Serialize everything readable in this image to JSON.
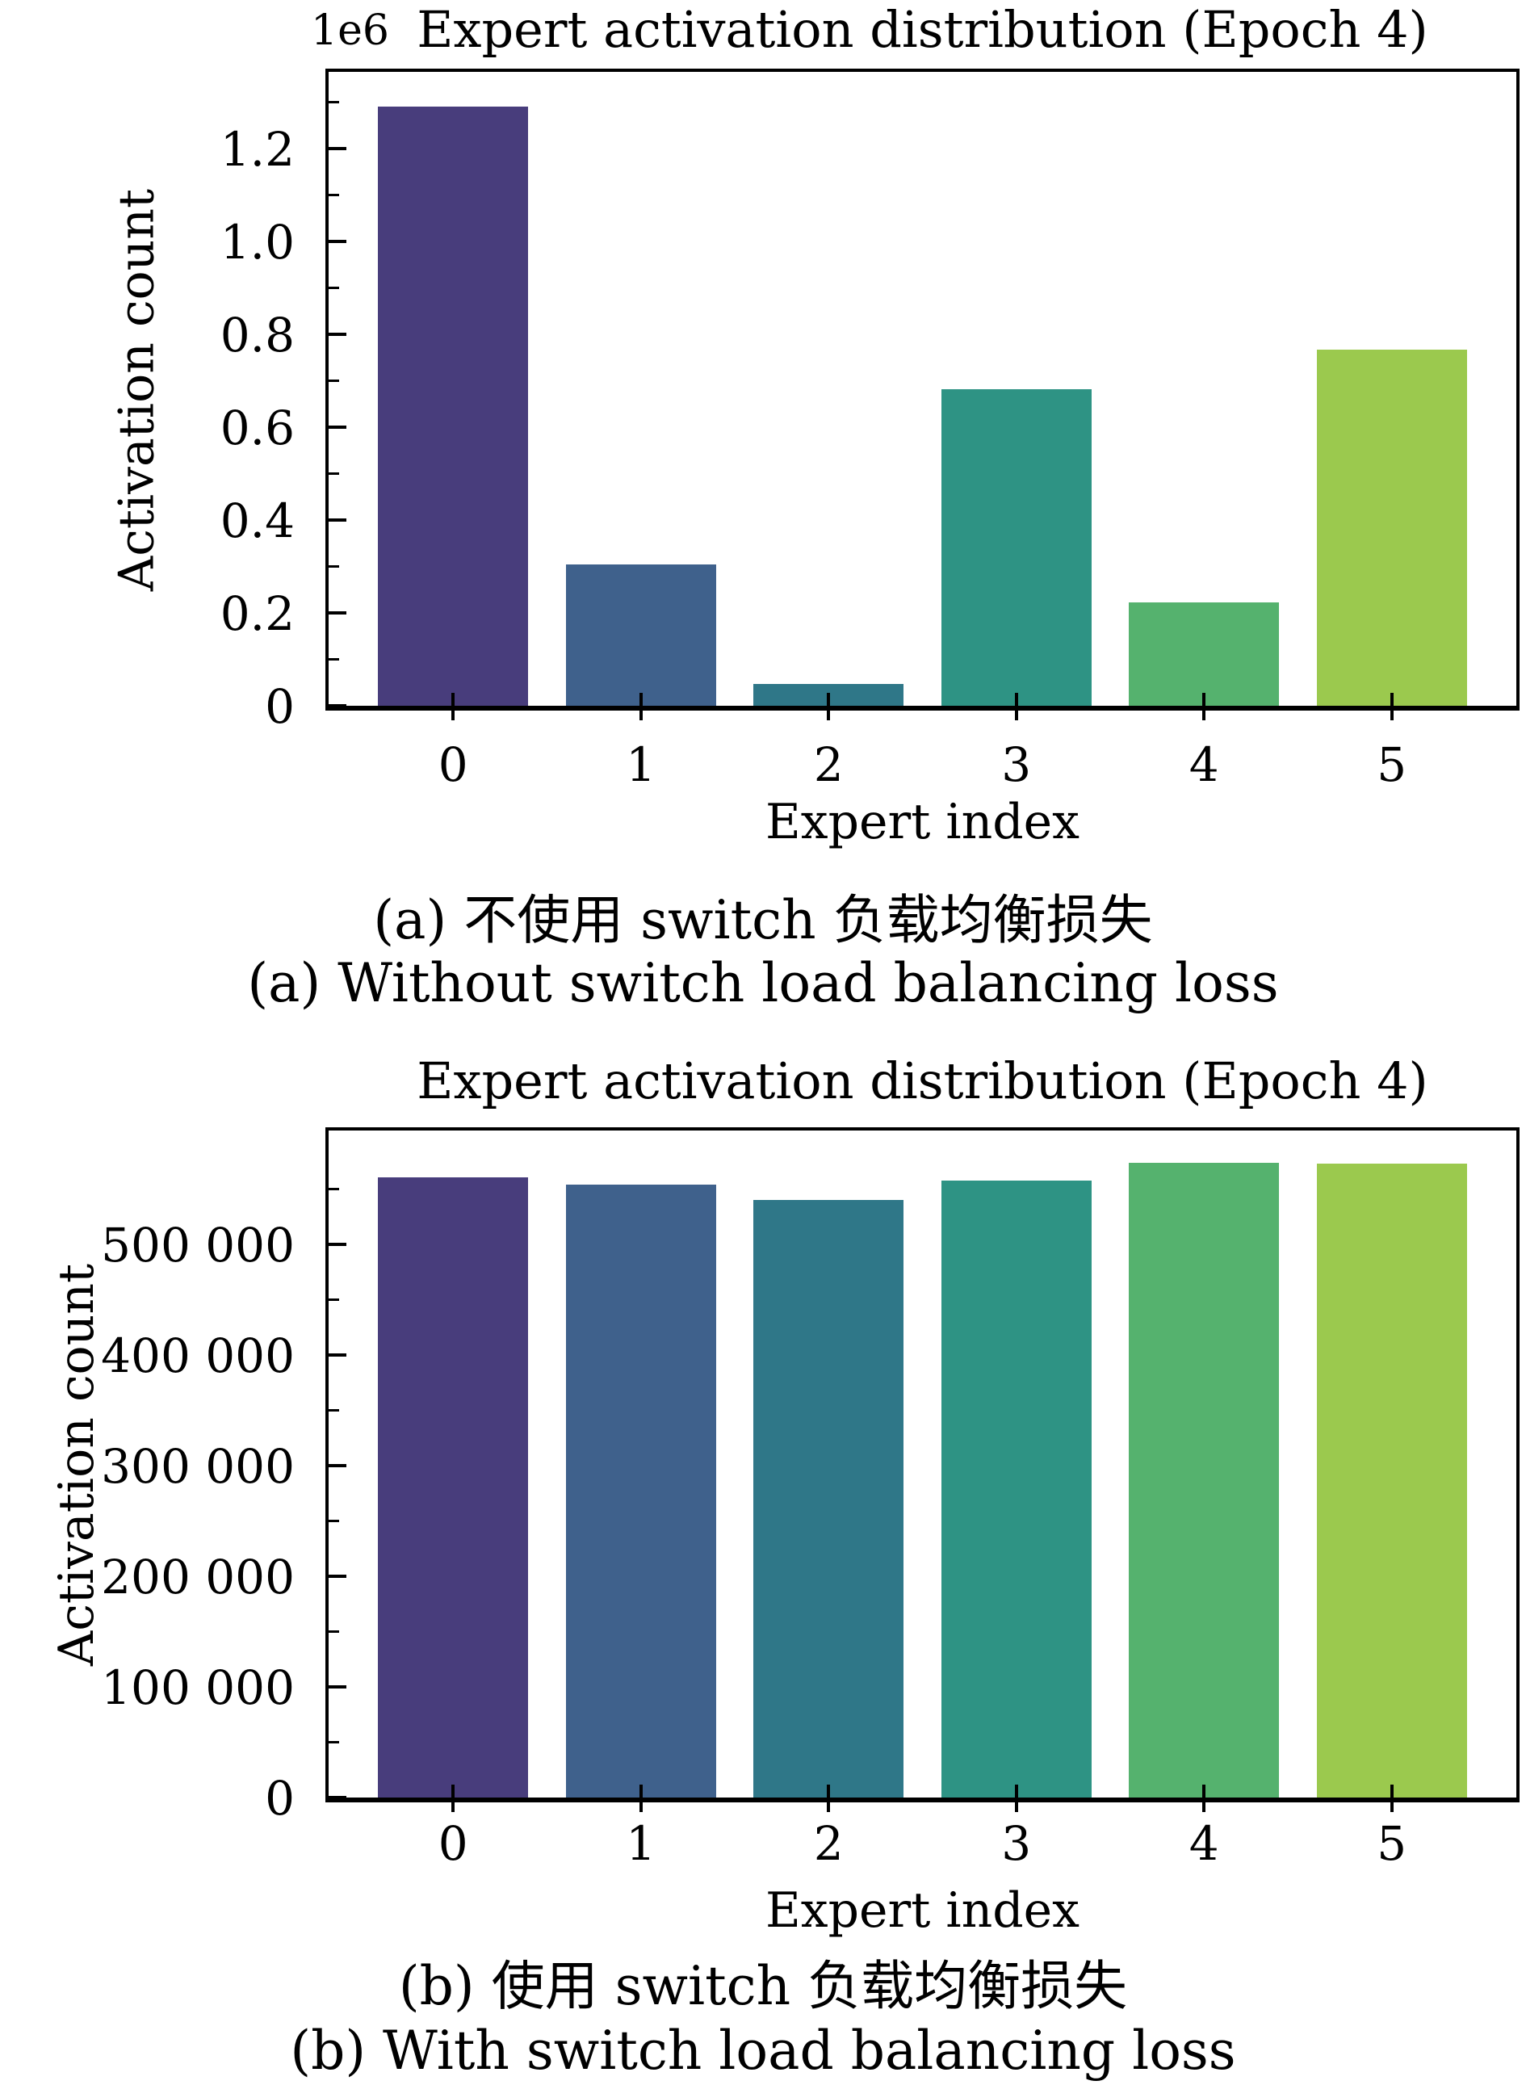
{
  "page": {
    "background": "#ffffff"
  },
  "chart_data": [
    {
      "type": "bar",
      "title": "Expert activation distribution (Epoch 4)",
      "offset_text": "1e6",
      "xlabel": "Expert index",
      "ylabel": "Activation count",
      "categories": [
        "0",
        "1",
        "2",
        "3",
        "4",
        "5"
      ],
      "values": [
        1290000,
        305000,
        47000,
        682000,
        223000,
        766000
      ],
      "bar_colors": [
        "#483d7c",
        "#3f618c",
        "#2f7788",
        "#2e9384",
        "#55b26e",
        "#9bc94e"
      ],
      "ylim": [
        0,
        1365000
      ],
      "ytick_values": [
        0,
        200000,
        400000,
        600000,
        800000,
        1000000,
        1200000
      ],
      "ytick_labels": [
        "0",
        "0.2",
        "0.4",
        "0.6",
        "0.8",
        "1.0",
        "1.2"
      ],
      "minor_ytick_values": [
        100000,
        300000,
        500000,
        700000,
        900000,
        1100000,
        1300000
      ],
      "grid": false,
      "legend": null,
      "caption_zh": "(a) 不使用 switch 负载均衡损失",
      "caption_en": "(a) Without switch load balancing loss"
    },
    {
      "type": "bar",
      "title": "Expert activation distribution (Epoch 4)",
      "offset_text": "",
      "xlabel": "Expert index",
      "ylabel": "Activation count",
      "categories": [
        "0",
        "1",
        "2",
        "3",
        "4",
        "5"
      ],
      "values": [
        561000,
        554000,
        540000,
        558000,
        574000,
        573000
      ],
      "bar_colors": [
        "#483d7c",
        "#3f618c",
        "#2f7788",
        "#2e9384",
        "#55b26e",
        "#9bc94e"
      ],
      "ylim": [
        0,
        603000
      ],
      "ytick_values": [
        0,
        100000,
        200000,
        300000,
        400000,
        500000
      ],
      "ytick_labels": [
        "0",
        "100 000",
        "200 000",
        "300 000",
        "400 000",
        "500 000"
      ],
      "minor_ytick_values": [
        50000,
        150000,
        250000,
        350000,
        450000,
        550000
      ],
      "grid": false,
      "legend": null,
      "caption_zh": "(b) 使用 switch 负载均衡损失",
      "caption_en": "(b) With switch load balancing loss"
    }
  ]
}
